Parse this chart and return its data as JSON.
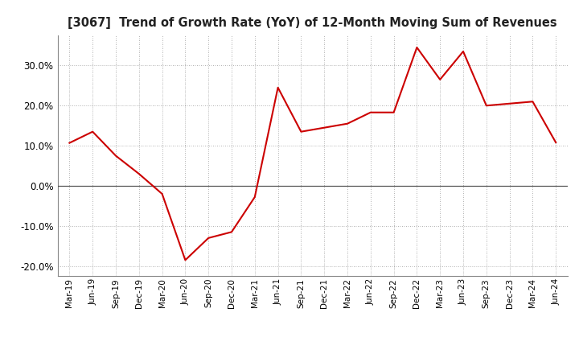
{
  "title": "[3067]  Trend of Growth Rate (YoY) of 12-Month Moving Sum of Revenues",
  "line_color": "#CC0000",
  "background_color": "#FFFFFF",
  "plot_bg_color": "#FFFFFF",
  "grid_color": "#999999",
  "zero_line_color": "#555555",
  "ylim": [
    -0.225,
    0.375
  ],
  "yticks": [
    -0.2,
    -0.1,
    0.0,
    0.1,
    0.2,
    0.3
  ],
  "labels": [
    "Mar-19",
    "Jun-19",
    "Sep-19",
    "Dec-19",
    "Mar-20",
    "Jun-20",
    "Sep-20",
    "Dec-20",
    "Mar-21",
    "Jun-21",
    "Sep-21",
    "Dec-21",
    "Mar-22",
    "Jun-22",
    "Sep-22",
    "Dec-22",
    "Mar-23",
    "Jun-23",
    "Sep-23",
    "Dec-23",
    "Mar-24",
    "Jun-24"
  ],
  "values": [
    0.107,
    0.135,
    0.075,
    0.03,
    -0.02,
    -0.185,
    -0.13,
    -0.115,
    -0.028,
    0.245,
    0.135,
    0.145,
    0.155,
    0.183,
    0.183,
    0.345,
    0.265,
    0.335,
    0.2,
    0.205,
    0.21,
    0.108
  ]
}
